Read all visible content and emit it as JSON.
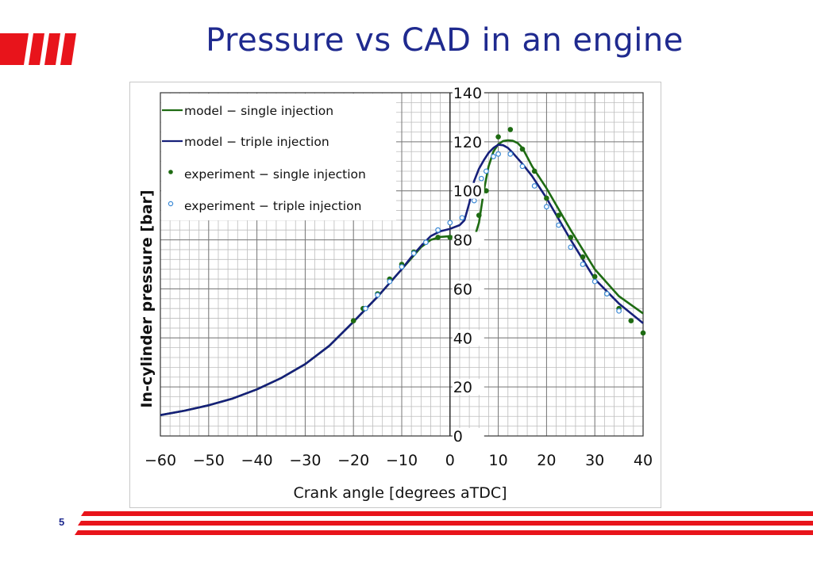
{
  "slide": {
    "title": "Pressure vs CAD in an engine",
    "page_number": "5",
    "accent_color": "#e8141b",
    "title_color": "#1f2a8f"
  },
  "chart_data": {
    "type": "line",
    "title": "",
    "xlabel": "Crank angle [degrees aTDC]",
    "ylabel": "In-cylinder pressure [bar]",
    "xlim": [
      -60,
      40
    ],
    "ylim": [
      0,
      140
    ],
    "x_ticks": [
      -60,
      -50,
      -40,
      -30,
      -20,
      -10,
      0,
      10,
      20,
      30,
      40
    ],
    "y_ticks": [
      0,
      20,
      40,
      60,
      80,
      100,
      120,
      140
    ],
    "grid": true,
    "legend_position": "top-left",
    "series": [
      {
        "name": "model - single injection",
        "kind": "line",
        "color": "#1e6b12",
        "x": [
          -60,
          -55,
          -50,
          -45,
          -40,
          -35,
          -30,
          -25,
          -20,
          -15,
          -10,
          -8,
          -6,
          -4,
          -2,
          0,
          2,
          3,
          4,
          5,
          6,
          7,
          8,
          9,
          10,
          11,
          12,
          13,
          14,
          15,
          17,
          20,
          25,
          30,
          35,
          40
        ],
        "y": [
          8.5,
          10.3,
          12.5,
          15.3,
          19,
          23.6,
          29.3,
          36.8,
          46.6,
          56.8,
          68,
          72.5,
          77,
          80,
          81.2,
          81.5,
          80.5,
          80,
          80,
          80.5,
          87,
          100,
          110,
          116,
          119,
          120.3,
          120.6,
          120.4,
          119.5,
          117.5,
          110,
          101,
          84,
          68,
          57,
          50
        ]
      },
      {
        "name": "model - triple injection",
        "kind": "line",
        "color": "#16207a",
        "x": [
          -60,
          -55,
          -50,
          -45,
          -40,
          -35,
          -30,
          -25,
          -20,
          -15,
          -10,
          -8,
          -6,
          -4,
          -2,
          0,
          2,
          3,
          4,
          5,
          6,
          7,
          8,
          9,
          10,
          11,
          12,
          13,
          15,
          17,
          20,
          25,
          30,
          35,
          40
        ],
        "y": [
          8.5,
          10.3,
          12.5,
          15.3,
          19,
          23.6,
          29.3,
          36.8,
          46.6,
          56.8,
          68,
          73,
          77.5,
          81.5,
          83.5,
          84.5,
          86,
          88,
          95,
          104,
          109,
          112.5,
          115.5,
          117.5,
          118.8,
          118.6,
          117.5,
          115.5,
          111,
          106,
          97,
          80,
          64,
          54,
          46
        ]
      },
      {
        "name": "experiment - single injection",
        "kind": "marker",
        "marker": "filled-dot",
        "color": "#1e6b12",
        "x": [
          -20,
          -18,
          -15,
          -12.5,
          -10,
          -7.5,
          -5,
          -2.5,
          0,
          2.5,
          5,
          6,
          7.5,
          10,
          12.5,
          15,
          17.5,
          20,
          22.5,
          25,
          27.5,
          30,
          32.5,
          35,
          37.5,
          40
        ],
        "y": [
          47,
          52,
          58,
          64,
          70,
          75,
          79,
          81,
          81,
          80.5,
          81,
          90,
          100,
          122,
          125,
          117,
          108,
          97,
          90,
          81,
          73,
          65,
          58,
          52,
          47,
          42
        ]
      },
      {
        "name": "experiment - triple injection",
        "kind": "marker",
        "marker": "open-circle",
        "color": "#3c8ad6",
        "x": [
          -17.5,
          -15,
          -12.5,
          -10,
          -7.5,
          -5,
          -2.5,
          0,
          2.5,
          5,
          6.5,
          7.5,
          9,
          10,
          12.5,
          15,
          17.5,
          20,
          22.5,
          25,
          27.5,
          30,
          32.5,
          35
        ],
        "y": [
          52,
          57.5,
          63,
          69,
          74.5,
          79,
          84,
          87,
          89,
          96,
          105,
          108,
          114,
          115,
          115,
          110,
          102,
          93.5,
          86,
          77,
          70,
          63,
          58,
          51
        ]
      }
    ]
  }
}
